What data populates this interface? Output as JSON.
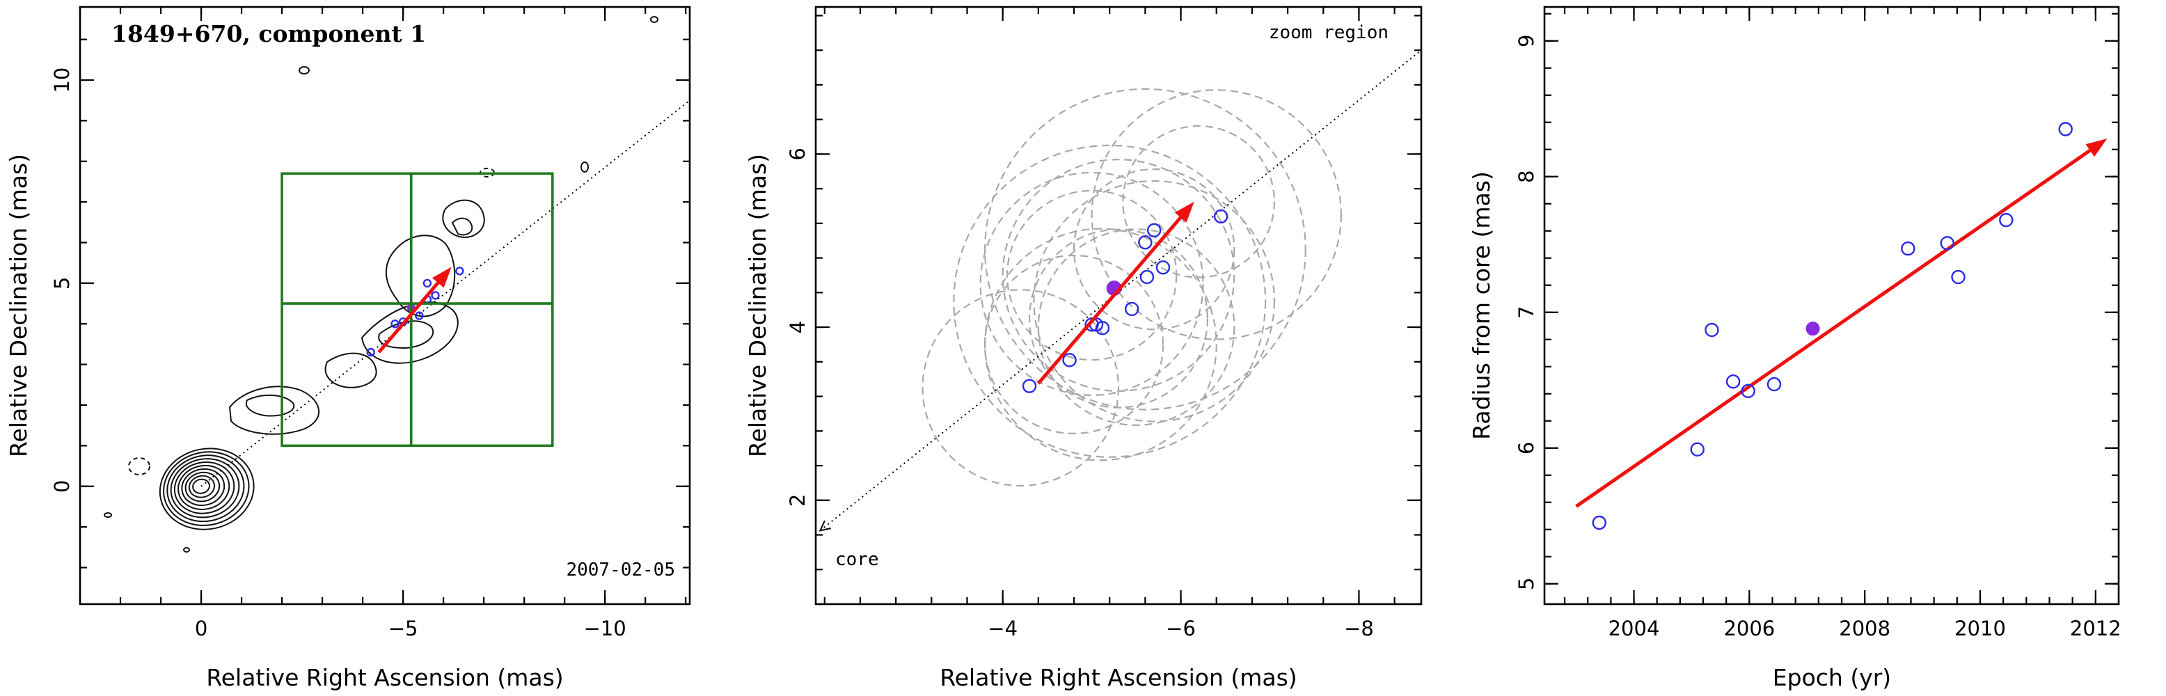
{
  "colors": {
    "observed_points": "#2a2ae6",
    "reference_epoch_point": "#8a2be2",
    "fit_arrow": "#ee1111",
    "zoom_box": "#1e7a1e",
    "model_circles": "#a8a8a8"
  },
  "chart_data": [
    {
      "type": "contour",
      "title": "1849+670, component 1",
      "annotation": "2007-02-05",
      "xlabel": "Relative Right Ascension (mas)",
      "ylabel": "Relative Declination (mas)",
      "xlim": [
        3,
        -12.1
      ],
      "ylim": [
        -2.9,
        11.8
      ],
      "xticks": [
        0,
        -5,
        -10
      ],
      "xtick_labels": [
        "0",
        "−5",
        "−10"
      ],
      "yticks": [
        0,
        5,
        10
      ],
      "ytick_labels": [
        "0",
        "5",
        "10"
      ],
      "zoom_box": {
        "x": [
          -2,
          -8.7
        ],
        "y": [
          1,
          7.7
        ],
        "center": [
          -5.2,
          4.5
        ]
      },
      "jet_axis": {
        "from": [
          0,
          0
        ],
        "to": [
          -12.1,
          9.5
        ],
        "style": "dotted"
      },
      "fit_arrow": {
        "from": [
          -4.4,
          3.3
        ],
        "to": [
          -6.2,
          5.4
        ]
      },
      "core_contour_levels": 10,
      "components": [
        {
          "x": -4.2,
          "y": 3.3
        },
        {
          "x": -4.8,
          "y": 4.0
        },
        {
          "x": -5.0,
          "y": 4.05
        },
        {
          "x": -5.4,
          "y": 4.2
        },
        {
          "x": -5.6,
          "y": 4.6
        },
        {
          "x": -5.6,
          "y": 5.0
        },
        {
          "x": -5.8,
          "y": 4.7
        },
        {
          "x": -6.4,
          "y": 5.3
        },
        {
          "x": -5.2,
          "y": 4.4,
          "reference": true
        }
      ]
    },
    {
      "type": "scatter",
      "xlabel": "Relative Right Ascension (mas)",
      "ylabel": "Relative Declination (mas)",
      "xlim": [
        -1.9,
        -8.7
      ],
      "ylim": [
        0.8,
        7.7
      ],
      "xticks": [
        -4,
        -6,
        -8
      ],
      "xtick_labels": [
        "−4",
        "−6",
        "−8"
      ],
      "yticks": [
        2,
        4,
        6
      ],
      "ytick_labels": [
        "2",
        "4",
        "6"
      ],
      "labels": {
        "zoom": "zoom region",
        "core": "core"
      },
      "jet_axis": {
        "from": [
          -1.95,
          1.65
        ],
        "to": [
          -8.7,
          7.2
        ],
        "style": "dotted",
        "arrow_at": "start"
      },
      "fit_arrow": {
        "from": [
          -4.4,
          3.35
        ],
        "to": [
          -6.15,
          5.45
        ]
      },
      "points": [
        {
          "x": -4.3,
          "y": 3.32
        },
        {
          "x": -4.75,
          "y": 3.62
        },
        {
          "x": -5.0,
          "y": 4.03
        },
        {
          "x": -5.05,
          "y": 4.03
        },
        {
          "x": -5.12,
          "y": 3.99
        },
        {
          "x": -5.45,
          "y": 4.21
        },
        {
          "x": -5.62,
          "y": 4.58
        },
        {
          "x": -5.6,
          "y": 4.98
        },
        {
          "x": -5.7,
          "y": 5.12
        },
        {
          "x": -5.8,
          "y": 4.69
        },
        {
          "x": -6.45,
          "y": 5.28
        }
      ],
      "reference_point": {
        "x": -5.25,
        "y": 4.45
      },
      "model_circles": [
        {
          "x": -5.6,
          "y": 4.9,
          "r": 1.8
        },
        {
          "x": -5.2,
          "y": 4.3,
          "r": 1.75
        },
        {
          "x": -5.7,
          "y": 4.3,
          "r": 1.35
        },
        {
          "x": -5.1,
          "y": 3.8,
          "r": 1.3
        },
        {
          "x": -5.3,
          "y": 4.6,
          "r": 1.3
        },
        {
          "x": -5.0,
          "y": 4.5,
          "r": 1.25
        },
        {
          "x": -5.5,
          "y": 4.0,
          "r": 1.1
        },
        {
          "x": -5.3,
          "y": 4.1,
          "r": 1.0
        },
        {
          "x": -5.7,
          "y": 4.9,
          "r": 0.9
        },
        {
          "x": -6.2,
          "y": 5.45,
          "r": 0.85
        },
        {
          "x": -4.2,
          "y": 3.3,
          "r": 1.1
        },
        {
          "x": -4.8,
          "y": 3.8,
          "r": 1.0
        },
        {
          "x": -6.4,
          "y": 5.3,
          "r": 1.4
        },
        {
          "x": -5.0,
          "y": 4.6,
          "r": 0.95
        }
      ]
    },
    {
      "type": "scatter",
      "xlabel": "Epoch (yr)",
      "ylabel": "Radius from core (mas)",
      "xlim": [
        2002.45,
        2012.4
      ],
      "ylim": [
        4.85,
        9.25
      ],
      "xticks": [
        2004,
        2006,
        2008,
        2010,
        2012
      ],
      "xtick_labels": [
        "2004",
        "2006",
        "2008",
        "2010",
        "2012"
      ],
      "yticks": [
        5,
        6,
        7,
        8,
        9
      ],
      "ytick_labels": [
        "5",
        "6",
        "7",
        "8",
        "9"
      ],
      "points": [
        {
          "x": 2003.4,
          "y": 5.45
        },
        {
          "x": 2005.1,
          "y": 5.99
        },
        {
          "x": 2005.35,
          "y": 6.87
        },
        {
          "x": 2005.72,
          "y": 6.49
        },
        {
          "x": 2005.98,
          "y": 6.42
        },
        {
          "x": 2006.43,
          "y": 6.47
        },
        {
          "x": 2008.75,
          "y": 7.47
        },
        {
          "x": 2009.43,
          "y": 7.51
        },
        {
          "x": 2009.62,
          "y": 7.26
        },
        {
          "x": 2010.45,
          "y": 7.68
        },
        {
          "x": 2011.48,
          "y": 8.35
        }
      ],
      "reference_point": {
        "x": 2007.1,
        "y": 6.88
      },
      "fit_arrow": {
        "from": [
          2003.0,
          5.57
        ],
        "to": [
          2012.2,
          8.28
        ]
      }
    }
  ]
}
